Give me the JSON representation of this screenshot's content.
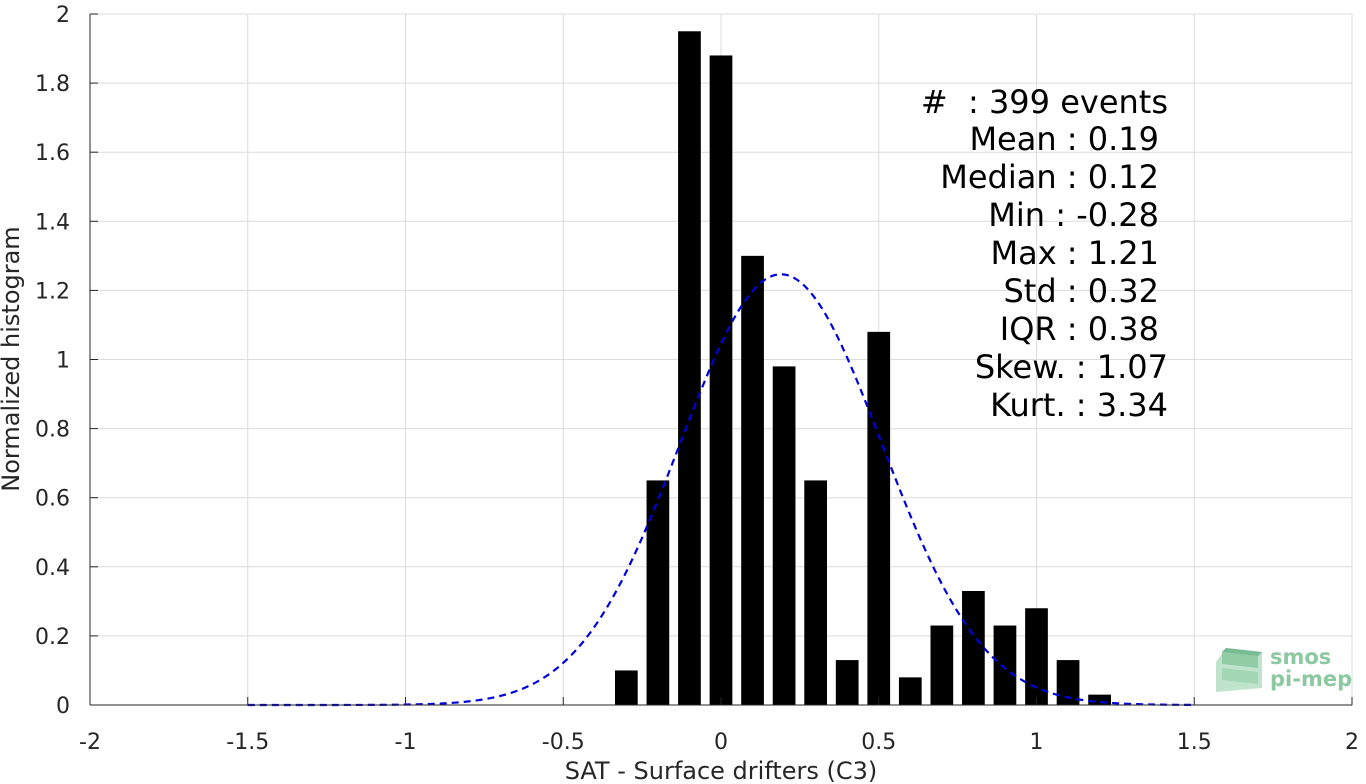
{
  "chart_data": {
    "type": "bar",
    "xlabel": "SAT - Surface drifters (C3)",
    "ylabel": "Normalized histogram",
    "xlim": [
      -2,
      2
    ],
    "ylim": [
      0,
      2
    ],
    "xticks": [
      "-2",
      "-1.5",
      "-1",
      "-0.5",
      "0",
      "0.5",
      "1",
      "1.5",
      "2"
    ],
    "yticks": [
      "0",
      "0.2",
      "0.4",
      "0.6",
      "0.8",
      "1",
      "1.2",
      "1.4",
      "1.6",
      "1.8",
      "2"
    ],
    "grid": true,
    "bin_width": 0.1,
    "bars": [
      {
        "x": -0.3,
        "y": 0.1
      },
      {
        "x": -0.2,
        "y": 0.65
      },
      {
        "x": -0.1,
        "y": 1.95
      },
      {
        "x": 0.0,
        "y": 1.88
      },
      {
        "x": 0.1,
        "y": 1.3
      },
      {
        "x": 0.2,
        "y": 0.98
      },
      {
        "x": 0.3,
        "y": 0.65
      },
      {
        "x": 0.4,
        "y": 0.13
      },
      {
        "x": 0.5,
        "y": 1.08
      },
      {
        "x": 0.6,
        "y": 0.08
      },
      {
        "x": 0.7,
        "y": 0.23
      },
      {
        "x": 0.8,
        "y": 0.33
      },
      {
        "x": 0.9,
        "y": 0.23
      },
      {
        "x": 1.0,
        "y": 0.28
      },
      {
        "x": 1.1,
        "y": 0.13
      },
      {
        "x": 1.2,
        "y": 0.03
      }
    ],
    "fit_curve": {
      "type": "gaussian",
      "mean": 0.19,
      "std": 0.32,
      "x_range": [
        -1.5,
        1.5
      ],
      "style": "dashed",
      "color": "#0000dd"
    },
    "bar_color": "#000000"
  },
  "stats": {
    "lines": [
      "#  : 399 events",
      "Mean : 0.19",
      "Median : 0.12",
      "Min : -0.28",
      "Max : 1.21",
      "Std : 0.32",
      "IQR : 0.38",
      "Skew. : 1.07",
      "Kurt. : 3.34"
    ]
  },
  "logo": {
    "line1": "smos",
    "line2": "pi-mep",
    "icon": "smos-pimep-logo-icon",
    "color": "#8cc8a0"
  }
}
